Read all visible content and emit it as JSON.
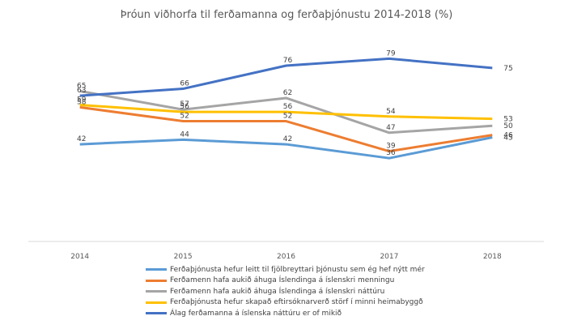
{
  "chart_data": {
    "type": "line",
    "title": "Þróun viðhorfa til ferðamanna og ferðaþjónustu 2014-2018 (%)",
    "categories": [
      "2014",
      "2015",
      "2016",
      "2017",
      "2018"
    ],
    "ylim": [
      0,
      90
    ],
    "grid": false,
    "legend_position": "bottom",
    "series": [
      {
        "name": "Ferðaþjónusta hefur leitt til fjölbreyttari þjónustu sem ég hef nýtt mér",
        "values": [
          42,
          44,
          42,
          36,
          45
        ],
        "color": "#5B9BD5"
      },
      {
        "name": "Ferðamenn hafa aukið áhuga Íslendinga á íslenskri menningu",
        "values": [
          58,
          52,
          52,
          39,
          46
        ],
        "color": "#ED7D31"
      },
      {
        "name": "Ferðamenn hafa aukið áhuga Íslendinga á íslenskri náttúru",
        "values": [
          65,
          57,
          62,
          47,
          50
        ],
        "color": "#A5A5A5"
      },
      {
        "name": "Ferðaþjónusta hefur skapað eftirsóknarverð störf í minni heimabyggð",
        "values": [
          59,
          56,
          56,
          54,
          53
        ],
        "color": "#FFC000"
      },
      {
        "name": "Álag ferðamanna á íslenska náttúru er of mikið",
        "values": [
          63,
          66,
          76,
          79,
          75
        ],
        "color": "#4472C4"
      }
    ]
  }
}
